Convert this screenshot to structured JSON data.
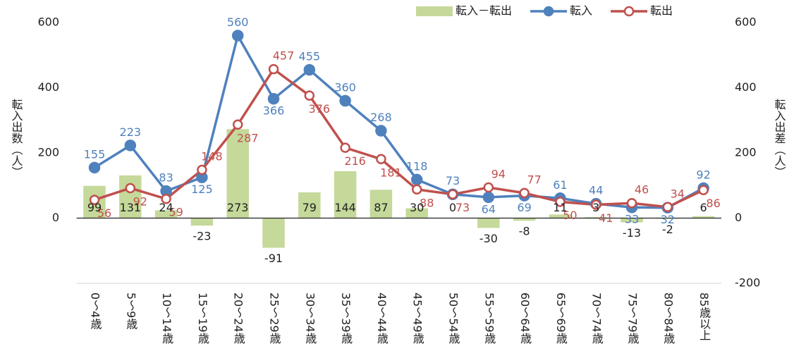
{
  "chart_data": {
    "type": "combo",
    "y_label": "転入出数（人）",
    "y2_label": "転入出差（人）",
    "categories": [
      "0～4歳",
      "5～9歳",
      "10～14歳",
      "15～19歳",
      "20～24歳",
      "25～29歳",
      "30～34歳",
      "35～39歳",
      "40～44歳",
      "45～49歳",
      "50～54歳",
      "55～59歳",
      "60～64歳",
      "65～69歳",
      "70～74歳",
      "75～79歳",
      "80～84歳",
      "85歳以上"
    ],
    "series": [
      {
        "name": "転入－転出",
        "type": "bar",
        "axis": "y2",
        "color": "#c5d99a",
        "values": [
          99,
          131,
          24,
          -23,
          273,
          -91,
          79,
          144,
          87,
          30,
          0,
          -30,
          -8,
          11,
          3,
          -13,
          -2,
          6
        ]
      },
      {
        "name": "転入",
        "type": "line",
        "color": "#4f81bd",
        "marker": "filled",
        "values": [
          155,
          223,
          83,
          125,
          560,
          366,
          455,
          360,
          268,
          118,
          73,
          64,
          69,
          61,
          44,
          33,
          32,
          92
        ]
      },
      {
        "name": "転出",
        "type": "line",
        "color": "#c0504d",
        "marker": "hollow",
        "values": [
          56,
          92,
          59,
          148,
          287,
          457,
          376,
          216,
          181,
          88,
          73,
          94,
          77,
          50,
          41,
          46,
          34,
          86
        ]
      }
    ],
    "ylim": [
      -200,
      600
    ],
    "yticks": [
      0,
      200,
      400,
      600
    ],
    "y2lim": [
      -200,
      600
    ],
    "y2ticks": [
      -200,
      0,
      200,
      400,
      600
    ],
    "grid": false,
    "legend": "top-right"
  }
}
